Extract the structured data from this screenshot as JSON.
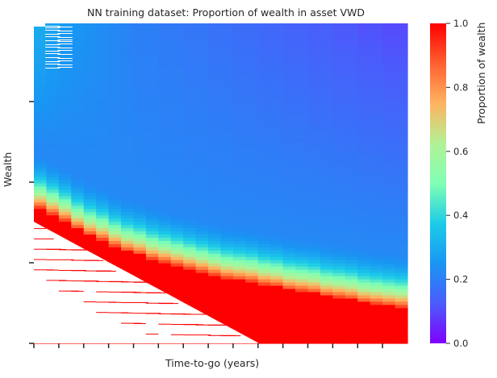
{
  "chart_data": {
    "type": "heatmap",
    "title": "NN training dataset: Proportion of wealth in asset VWD",
    "xlabel": "Time-to-go (years)",
    "ylabel": "Wealth",
    "colorbar": {
      "label": "Proportion of wealth",
      "ticks": [
        "0.0",
        "0.2",
        "0.4",
        "0.6",
        "0.8",
        "1.0"
      ],
      "range": [
        0,
        1
      ],
      "colormap": "rainbow"
    },
    "time_columns": 30,
    "x_tick_count": 15,
    "y_tick_count": 4,
    "boundary_fraction_by_column": [
      0.58,
      0.6,
      0.62,
      0.645,
      0.665,
      0.68,
      0.7,
      0.715,
      0.725,
      0.74,
      0.75,
      0.76,
      0.77,
      0.78,
      0.79,
      0.8,
      0.805,
      0.81,
      0.82,
      0.825,
      0.835,
      0.84,
      0.845,
      0.855,
      0.86,
      0.865,
      0.875,
      0.88,
      0.885,
      0.89
    ],
    "top_value_by_column": [
      0.3,
      0.28,
      0.26,
      0.25,
      0.24,
      0.23,
      0.22,
      0.21,
      0.2,
      0.2,
      0.19,
      0.19,
      0.18,
      0.18,
      0.17,
      0.17,
      0.16,
      0.16,
      0.15,
      0.15,
      0.14,
      0.14,
      0.13,
      0.13,
      0.12,
      0.12,
      0.11,
      0.11,
      0.1,
      0.1
    ],
    "low_wealth_value": 1.0
  }
}
